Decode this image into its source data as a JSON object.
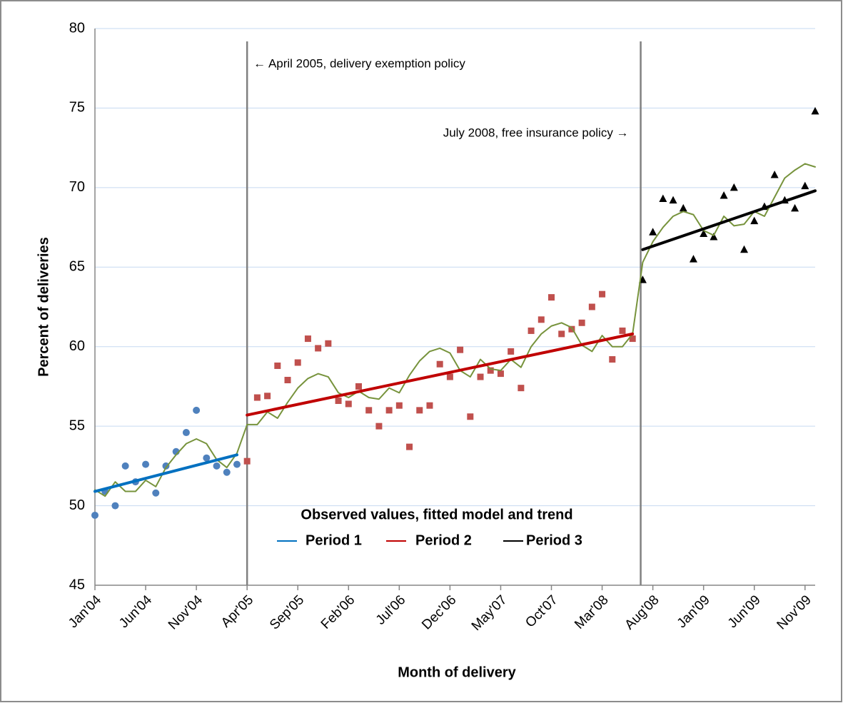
{
  "chart_data": {
    "type": "line",
    "x_label": "Month of delivery",
    "y_label": "Percent of deliveries",
    "xlim": [
      0,
      71
    ],
    "xticks": [
      {
        "value": 0,
        "label": "Jan'04"
      },
      {
        "value": 5,
        "label": "Jun'04"
      },
      {
        "value": 10,
        "label": "Nov'04"
      },
      {
        "value": 15,
        "label": "Apr'05"
      },
      {
        "value": 20,
        "label": "Sep'05"
      },
      {
        "value": 25,
        "label": "Feb'06"
      },
      {
        "value": 30,
        "label": "Jul'06"
      },
      {
        "value": 35,
        "label": "Dec'06"
      },
      {
        "value": 40,
        "label": "May'07"
      },
      {
        "value": 45,
        "label": "Oct'07"
      },
      {
        "value": 50,
        "label": "Mar'08"
      },
      {
        "value": 55,
        "label": "Aug'08"
      },
      {
        "value": 60,
        "label": "Jan'09"
      },
      {
        "value": 65,
        "label": "Jun'09"
      },
      {
        "value": 70,
        "label": "Nov'09"
      }
    ],
    "ylim": [
      45,
      80
    ],
    "yticks": [
      45,
      50,
      55,
      60,
      65,
      70,
      75,
      80
    ],
    "grid": true,
    "legend_title": "Observed values, fitted model and trend",
    "annotations": [
      {
        "text": "← April 2005, delivery exemption policy",
        "x": 15
      },
      {
        "text": "July 2008, free insurance policy →",
        "x": 53.8
      }
    ],
    "series": [
      {
        "type": "scatter",
        "marker": "circle",
        "color": "#4f81bd",
        "x": [
          0,
          1,
          2,
          3,
          4,
          5,
          6,
          7,
          8,
          9,
          10,
          11,
          12,
          13,
          14
        ],
        "values": [
          49.4,
          50.9,
          50.0,
          52.5,
          51.5,
          52.6,
          50.8,
          52.5,
          53.4,
          54.6,
          56.0,
          53.0,
          52.5,
          52.1,
          52.6
        ]
      },
      {
        "type": "scatter",
        "marker": "square",
        "color": "#c0504d",
        "x": [
          15,
          16,
          17,
          18,
          19,
          20,
          21,
          22,
          23,
          24,
          25,
          26,
          27,
          28,
          29,
          30,
          31,
          32,
          33,
          34,
          35,
          36,
          37,
          38,
          39,
          40,
          41,
          42,
          43,
          44,
          45,
          46,
          47,
          48,
          49,
          50,
          51,
          52,
          53
        ],
        "values": [
          52.8,
          56.8,
          56.9,
          58.8,
          57.9,
          59.0,
          60.5,
          59.9,
          60.2,
          56.6,
          56.4,
          57.5,
          56.0,
          55.0,
          56.0,
          56.3,
          53.7,
          56.0,
          56.3,
          58.9,
          58.1,
          59.8,
          55.6,
          58.1,
          58.5,
          58.3,
          59.7,
          57.4,
          61.0,
          61.7,
          63.1,
          60.8,
          61.1,
          61.5,
          62.5,
          63.3,
          59.2,
          61.0,
          60.5
        ]
      },
      {
        "type": "scatter",
        "marker": "triangle",
        "color": "#000000",
        "x": [
          54,
          55,
          56,
          57,
          58,
          59,
          60,
          61,
          62,
          63,
          64,
          65,
          66,
          67,
          68,
          69,
          70,
          71
        ],
        "values": [
          64.2,
          67.2,
          69.3,
          69.2,
          68.7,
          65.5,
          67.1,
          66.9,
          69.5,
          70.0,
          66.1,
          67.9,
          68.8,
          70.8,
          69.2,
          68.7,
          70.1,
          74.8
        ]
      },
      {
        "type": "line",
        "color": "#77933c",
        "width": 2,
        "x": [
          0,
          1,
          2,
          3,
          4,
          5,
          6,
          7,
          8,
          9,
          10,
          11,
          12,
          13,
          14,
          15,
          16,
          17,
          18,
          19,
          20,
          21,
          22,
          23,
          24,
          25,
          26,
          27,
          28,
          29,
          30,
          31,
          32,
          33,
          34,
          35,
          36,
          37,
          38,
          39,
          40,
          41,
          42,
          43,
          44,
          45,
          46,
          47,
          48,
          49,
          50,
          51,
          52,
          53,
          54,
          55,
          56,
          57,
          58,
          59,
          60,
          61,
          62,
          63,
          64,
          65,
          66,
          67,
          68,
          69,
          70,
          71
        ],
        "values": [
          51.0,
          50.6,
          51.5,
          50.9,
          50.9,
          51.6,
          51.2,
          52.4,
          53.2,
          53.9,
          54.2,
          53.9,
          52.9,
          52.4,
          53.3,
          55.1,
          55.1,
          55.9,
          55.5,
          56.5,
          57.4,
          58.0,
          58.3,
          58.1,
          57.1,
          56.8,
          57.2,
          56.8,
          56.7,
          57.4,
          57.1,
          58.2,
          59.1,
          59.7,
          59.9,
          59.6,
          58.5,
          58.1,
          59.2,
          58.6,
          58.5,
          59.2,
          58.7,
          60.0,
          60.8,
          61.3,
          61.5,
          61.2,
          60.1,
          59.7,
          60.7,
          60.0,
          60.0,
          60.8,
          65.3,
          66.6,
          67.5,
          68.2,
          68.5,
          68.3,
          67.3,
          67.0,
          68.2,
          67.6,
          67.7,
          68.5,
          68.2,
          69.4,
          70.6,
          71.1,
          71.5,
          71.3
        ]
      },
      {
        "type": "line",
        "name": "Period 1",
        "color": "#0070c0",
        "width": 4,
        "x": [
          0,
          14
        ],
        "values": [
          50.9,
          53.2
        ]
      },
      {
        "type": "line",
        "name": "Period 2",
        "color": "#c00000",
        "width": 4,
        "x": [
          15,
          53
        ],
        "values": [
          55.7,
          60.8
        ]
      },
      {
        "type": "line",
        "name": "Period 3",
        "color": "#000000",
        "width": 4,
        "x": [
          54,
          71
        ],
        "values": [
          66.1,
          69.8
        ]
      }
    ]
  }
}
